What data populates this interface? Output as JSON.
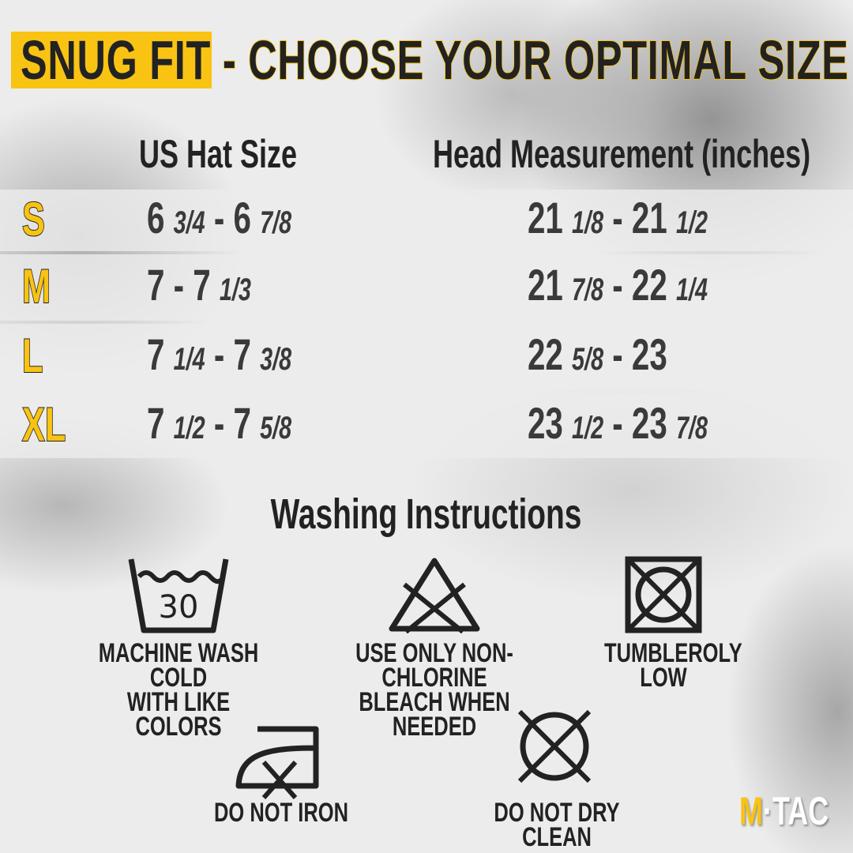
{
  "title": {
    "highlight": "SNUG FIT",
    "rest": "- CHOOSE YOUR OPTIMAL SIZE"
  },
  "headers": {
    "hat": "US Hat Size",
    "head": "Head Measurement (inches)"
  },
  "rows": [
    {
      "size": "S",
      "hat": [
        {
          "w": "6",
          "f": "3/4"
        },
        {
          "w": "6",
          "f": "7/8"
        }
      ],
      "head": [
        {
          "w": "21",
          "f": "1/8"
        },
        {
          "w": "21",
          "f": "1/2"
        }
      ]
    },
    {
      "size": "M",
      "hat": [
        {
          "w": "7",
          "f": ""
        },
        {
          "w": "7",
          "f": "1/3"
        }
      ],
      "head": [
        {
          "w": "21",
          "f": "7/8"
        },
        {
          "w": "22",
          "f": "1/4"
        }
      ]
    },
    {
      "size": "L",
      "hat": [
        {
          "w": "7",
          "f": "1/4"
        },
        {
          "w": "7",
          "f": "3/8"
        }
      ],
      "head": [
        {
          "w": "22",
          "f": "5/8"
        },
        {
          "w": "23",
          "f": ""
        }
      ]
    },
    {
      "size": "XL",
      "hat": [
        {
          "w": "7",
          "f": "1/2"
        },
        {
          "w": "7",
          "f": "5/8"
        }
      ],
      "head": [
        {
          "w": "23",
          "f": "1/2"
        },
        {
          "w": "23",
          "f": "7/8"
        }
      ]
    }
  ],
  "washing": {
    "title": "Washing Instructions",
    "items": [
      {
        "icon": "wash-30-icon",
        "temp": "30",
        "line1": "MACHINE WASH COLD",
        "line2": "WITH LIKE COLORS"
      },
      {
        "icon": "no-chlorine-bleach-icon",
        "line1": "USE ONLY NON-CHLORINE",
        "line2": "BLEACH WHEN NEEDED"
      },
      {
        "icon": "no-tumble-dry-icon",
        "line1": "TUMBLEROLY",
        "line2": "LOW"
      },
      {
        "icon": "do-not-iron-icon",
        "line1": "DO NOT IRON"
      },
      {
        "icon": "do-not-dry-clean-icon",
        "line1": "DO NOT DRY CLEAN"
      }
    ]
  },
  "logo": {
    "m": "M",
    "tac": "TAC"
  },
  "colors": {
    "accent": "#f8c313",
    "text": "#222222"
  }
}
